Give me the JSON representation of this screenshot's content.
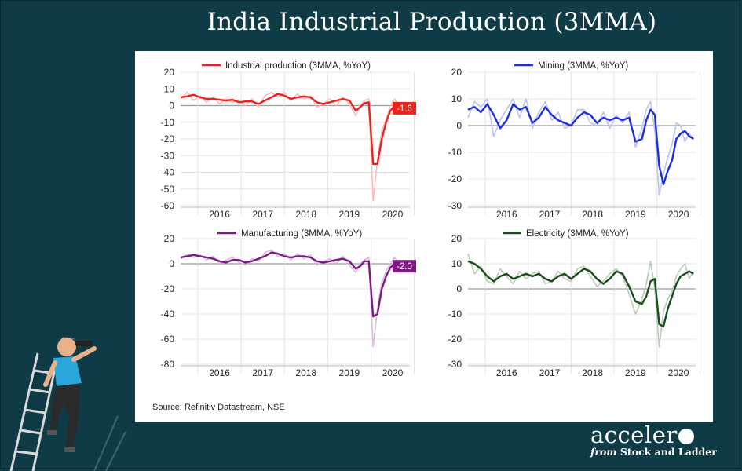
{
  "slide": {
    "title": "India Industrial Production (3MMA)",
    "source": "Source: Refinitiv Datastream, NSE",
    "brand": {
      "name": "acceler",
      "sub_italic": "from",
      "sub": "Stock and Ladder"
    }
  },
  "colors": {
    "background": "#0e3b45",
    "industrial": "#e8241c",
    "mining": "#1d2fd6",
    "manufacturing": "#7d1a86",
    "electricity": "#1b4d1b",
    "zero_line": "#999999"
  },
  "chart_data": [
    {
      "type": "line",
      "title": "",
      "legend": "Industrial production (3MMA, %YoY)",
      "color": "#e8241c",
      "ylim": [
        -60,
        20
      ],
      "yticks": [
        "20",
        "10",
        "0",
        "-10",
        "-20",
        "-30",
        "-40",
        "-50",
        "-60"
      ],
      "xticks": [
        "2016",
        "2017",
        "2018",
        "2019",
        "2020"
      ],
      "last_value_label": "-1.6",
      "x_start": 2015.6,
      "x_end": 2020.9,
      "series": [
        {
          "name": "Industrial production (3MMA, %YoY)",
          "x": [
            2015.6,
            2015.75,
            2015.9,
            2016.05,
            2016.2,
            2016.35,
            2016.5,
            2016.65,
            2016.8,
            2016.95,
            2017.1,
            2017.25,
            2017.4,
            2017.55,
            2017.7,
            2017.85,
            2018.0,
            2018.15,
            2018.3,
            2018.45,
            2018.6,
            2018.75,
            2018.9,
            2019.05,
            2019.2,
            2019.35,
            2019.5,
            2019.65,
            2019.75,
            2019.85,
            2019.95,
            2020.05,
            2020.15,
            2020.25,
            2020.35,
            2020.45,
            2020.55,
            2020.65,
            2020.75
          ],
          "y": [
            5,
            5.5,
            6.5,
            5,
            4,
            4,
            3.5,
            3,
            3.5,
            2,
            2.5,
            2.5,
            1,
            3,
            5,
            7,
            6,
            4,
            5,
            5.5,
            5,
            2,
            1,
            2,
            3,
            4,
            3,
            -3,
            -1,
            1.5,
            2,
            -35,
            -35,
            -20,
            -10,
            -3,
            0,
            1,
            -1.6
          ]
        },
        {
          "name": "monthly",
          "x": [
            2015.6,
            2015.75,
            2015.9,
            2016.05,
            2016.2,
            2016.35,
            2016.5,
            2016.65,
            2016.8,
            2016.95,
            2017.1,
            2017.25,
            2017.4,
            2017.55,
            2017.7,
            2017.85,
            2018.0,
            2018.15,
            2018.3,
            2018.45,
            2018.6,
            2018.75,
            2018.9,
            2019.05,
            2019.2,
            2019.35,
            2019.5,
            2019.65,
            2019.75,
            2019.85,
            2019.95,
            2020.05,
            2020.15,
            2020.25,
            2020.35,
            2020.45,
            2020.55,
            2020.65,
            2020.75
          ],
          "y": [
            4,
            8,
            3,
            6,
            2,
            5,
            1,
            4,
            2,
            3,
            0,
            4,
            -1,
            6,
            8,
            5,
            8,
            3,
            7,
            4,
            6,
            -1,
            1,
            4,
            0,
            5,
            1,
            -6,
            0,
            3,
            4,
            -57,
            -33,
            -15,
            -8,
            0,
            4,
            -1,
            -2
          ]
        }
      ]
    },
    {
      "type": "line",
      "title": "",
      "legend": "Mining (3MMA, %YoY)",
      "color": "#1d2fd6",
      "ylim": [
        -30,
        20
      ],
      "yticks": [
        "20",
        "10",
        "0",
        "-10",
        "-20",
        "-30"
      ],
      "xticks": [
        "2016",
        "2017",
        "2018",
        "2019",
        "2020"
      ],
      "x_start": 2015.6,
      "x_end": 2020.9,
      "series": [
        {
          "name": "Mining (3MMA, %YoY)",
          "x": [
            2015.6,
            2015.75,
            2015.9,
            2016.05,
            2016.2,
            2016.35,
            2016.5,
            2016.65,
            2016.8,
            2016.95,
            2017.1,
            2017.25,
            2017.4,
            2017.55,
            2017.7,
            2017.85,
            2018.0,
            2018.15,
            2018.3,
            2018.45,
            2018.6,
            2018.75,
            2018.9,
            2019.05,
            2019.2,
            2019.35,
            2019.5,
            2019.65,
            2019.75,
            2019.85,
            2019.95,
            2020.05,
            2020.15,
            2020.25,
            2020.35,
            2020.45,
            2020.55,
            2020.65,
            2020.75,
            2020.85
          ],
          "y": [
            6,
            7,
            5,
            8,
            4,
            -1,
            2,
            8,
            6,
            7,
            1,
            3,
            7,
            4,
            2,
            1,
            0,
            3,
            5,
            4,
            1,
            3,
            2,
            3,
            2,
            3,
            -6,
            -5,
            2,
            6,
            4,
            -15,
            -22,
            -17,
            -13,
            -5,
            -3,
            -2,
            -4,
            -5
          ]
        },
        {
          "name": "monthly",
          "x": [
            2015.6,
            2015.75,
            2015.9,
            2016.05,
            2016.2,
            2016.35,
            2016.5,
            2016.65,
            2016.8,
            2016.95,
            2017.1,
            2017.25,
            2017.4,
            2017.55,
            2017.7,
            2017.85,
            2018.0,
            2018.15,
            2018.3,
            2018.45,
            2018.6,
            2018.75,
            2018.9,
            2019.05,
            2019.2,
            2019.35,
            2019.5,
            2019.65,
            2019.75,
            2019.85,
            2019.95,
            2020.05,
            2020.15,
            2020.25,
            2020.35,
            2020.45,
            2020.55,
            2020.65,
            2020.75,
            2020.85
          ],
          "y": [
            3,
            9,
            7,
            10,
            -4,
            2,
            6,
            10,
            3,
            10,
            -1,
            5,
            9,
            2,
            5,
            -1,
            0,
            6,
            6,
            1,
            0,
            5,
            -1,
            4,
            1,
            5,
            -8,
            -1,
            6,
            9,
            -2,
            -26,
            -18,
            -12,
            -7,
            1,
            0,
            -6,
            -3,
            -5
          ]
        }
      ]
    },
    {
      "type": "line",
      "title": "",
      "legend": "Manufacturing (3MMA, %YoY)",
      "color": "#7d1a86",
      "ylim": [
        -80,
        20
      ],
      "yticks": [
        "20",
        "0",
        "-20",
        "-40",
        "-60",
        "-80"
      ],
      "xticks": [
        "2016",
        "2017",
        "2018",
        "2019",
        "2020"
      ],
      "last_value_label": "-2.0",
      "x_start": 2015.6,
      "x_end": 2020.9,
      "series": [
        {
          "name": "Manufacturing (3MMA, %YoY)",
          "x": [
            2015.6,
            2015.75,
            2015.9,
            2016.05,
            2016.2,
            2016.35,
            2016.5,
            2016.65,
            2016.8,
            2016.95,
            2017.1,
            2017.25,
            2017.4,
            2017.55,
            2017.7,
            2017.85,
            2018.0,
            2018.15,
            2018.3,
            2018.45,
            2018.6,
            2018.75,
            2018.9,
            2019.05,
            2019.2,
            2019.35,
            2019.5,
            2019.65,
            2019.75,
            2019.85,
            2019.95,
            2020.05,
            2020.15,
            2020.25,
            2020.35,
            2020.45,
            2020.55,
            2020.65,
            2020.75
          ],
          "y": [
            5,
            6,
            7,
            6,
            5,
            4,
            2,
            1,
            3,
            3,
            1,
            2,
            4,
            6,
            9,
            8,
            6,
            5,
            6,
            6,
            5,
            2,
            1,
            2,
            3,
            4,
            2,
            -4,
            -2,
            2,
            2,
            -42,
            -40,
            -20,
            -10,
            -3,
            0,
            1,
            -2
          ]
        },
        {
          "name": "monthly",
          "x": [
            2015.6,
            2015.75,
            2015.9,
            2016.05,
            2016.2,
            2016.35,
            2016.5,
            2016.65,
            2016.8,
            2016.95,
            2017.1,
            2017.25,
            2017.4,
            2017.55,
            2017.7,
            2017.85,
            2018.0,
            2018.15,
            2018.3,
            2018.45,
            2018.6,
            2018.75,
            2018.9,
            2019.05,
            2019.2,
            2019.35,
            2019.5,
            2019.65,
            2019.75,
            2019.85,
            2019.95,
            2020.05,
            2020.15,
            2020.25,
            2020.35,
            2020.45,
            2020.55,
            2020.65,
            2020.75
          ],
          "y": [
            4,
            8,
            5,
            7,
            3,
            6,
            0,
            3,
            5,
            1,
            -1,
            4,
            2,
            9,
            11,
            6,
            8,
            3,
            8,
            4,
            7,
            -1,
            2,
            4,
            0,
            6,
            -1,
            -7,
            0,
            3,
            5,
            -66,
            -36,
            -15,
            -6,
            0,
            5,
            -1,
            -3
          ]
        }
      ]
    },
    {
      "type": "line",
      "title": "",
      "legend": "Electricity (3MMA, %YoY)",
      "color": "#1b4d1b",
      "ylim": [
        -30,
        20
      ],
      "yticks": [
        "20",
        "10",
        "0",
        "-10",
        "-20",
        "-30"
      ],
      "xticks": [
        "2016",
        "2017",
        "2018",
        "2019",
        "2020"
      ],
      "x_start": 2015.6,
      "x_end": 2020.9,
      "series": [
        {
          "name": "Electricity (3MMA, %YoY)",
          "x": [
            2015.6,
            2015.75,
            2015.9,
            2016.05,
            2016.2,
            2016.35,
            2016.5,
            2016.65,
            2016.8,
            2016.95,
            2017.1,
            2017.25,
            2017.4,
            2017.55,
            2017.7,
            2017.85,
            2018.0,
            2018.15,
            2018.3,
            2018.45,
            2018.6,
            2018.75,
            2018.9,
            2019.05,
            2019.2,
            2019.35,
            2019.5,
            2019.65,
            2019.75,
            2019.85,
            2019.95,
            2020.05,
            2020.15,
            2020.25,
            2020.35,
            2020.45,
            2020.55,
            2020.65,
            2020.75,
            2020.85
          ],
          "y": [
            11,
            10,
            8,
            5,
            3,
            5,
            6,
            4,
            5,
            6,
            5,
            6,
            4,
            3,
            5,
            6,
            4,
            6,
            8,
            7,
            4,
            2,
            4,
            7,
            6,
            1,
            -5,
            -6,
            -3,
            3,
            4,
            -14,
            -15,
            -8,
            -3,
            2,
            5,
            6,
            7,
            6
          ]
        },
        {
          "name": "monthly",
          "x": [
            2015.6,
            2015.75,
            2015.9,
            2016.05,
            2016.2,
            2016.35,
            2016.5,
            2016.65,
            2016.8,
            2016.95,
            2017.1,
            2017.25,
            2017.4,
            2017.55,
            2017.7,
            2017.85,
            2018.0,
            2018.15,
            2018.3,
            2018.45,
            2018.6,
            2018.75,
            2018.9,
            2019.05,
            2019.2,
            2019.35,
            2019.5,
            2019.65,
            2019.75,
            2019.85,
            2019.95,
            2020.05,
            2020.15,
            2020.25,
            2020.35,
            2020.45,
            2020.55,
            2020.65,
            2020.75,
            2020.85
          ],
          "y": [
            14,
            6,
            9,
            3,
            2,
            8,
            5,
            2,
            7,
            4,
            6,
            7,
            2,
            3,
            7,
            4,
            3,
            8,
            9,
            5,
            1,
            3,
            6,
            8,
            5,
            -2,
            -10,
            -4,
            2,
            11,
            0,
            -23,
            -9,
            -4,
            -1,
            5,
            8,
            10,
            4,
            7
          ]
        }
      ]
    }
  ]
}
